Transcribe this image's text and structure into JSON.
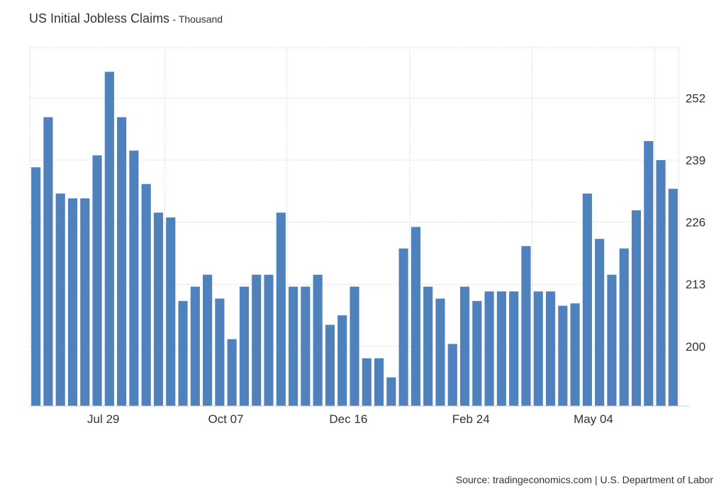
{
  "header": {
    "title": "US Initial Jobless Claims",
    "subtitle": "- Thousand"
  },
  "footer": {
    "source": "Source: tradingeconomics.com | U.S. Department of Labor"
  },
  "colors": {
    "bar": "#4f81bd",
    "grid": "#d9d9d9",
    "axis": "#cccccc",
    "text": "#333333"
  },
  "chart_data": {
    "type": "bar",
    "title": "US Initial Jobless Claims",
    "subtitle": "- Thousand",
    "xlabel": "",
    "ylabel": "",
    "ylim": [
      187.5,
      262.6
    ],
    "yticks": [
      200,
      213,
      226,
      239,
      252
    ],
    "y_axis_side": "right",
    "grid": true,
    "x_tick_labels": [
      {
        "label": "Jul 29",
        "index": 5.5
      },
      {
        "label": "Oct 07",
        "index": 15.5
      },
      {
        "label": "Dec 16",
        "index": 25.5
      },
      {
        "label": "Feb 24",
        "index": 35.5
      },
      {
        "label": "May 04",
        "index": 45.5
      }
    ],
    "series": [
      {
        "values": [
          237.5,
          248,
          232,
          231,
          231,
          240,
          257.5,
          248,
          241,
          234,
          228,
          227,
          209.5,
          212.5,
          215,
          210,
          201.5,
          212.5,
          215,
          215,
          228,
          212.5,
          212.5,
          215,
          204.5,
          206.5,
          212.5,
          197.5,
          197.5,
          193.5,
          220.5,
          225,
          212.5,
          210,
          200.5,
          212.5,
          209.5,
          211.5,
          211.5,
          211.5,
          221,
          211.5,
          211.5,
          208.5,
          209,
          232,
          222.5,
          215,
          220.5,
          228.5,
          243,
          239,
          233
        ]
      }
    ]
  }
}
